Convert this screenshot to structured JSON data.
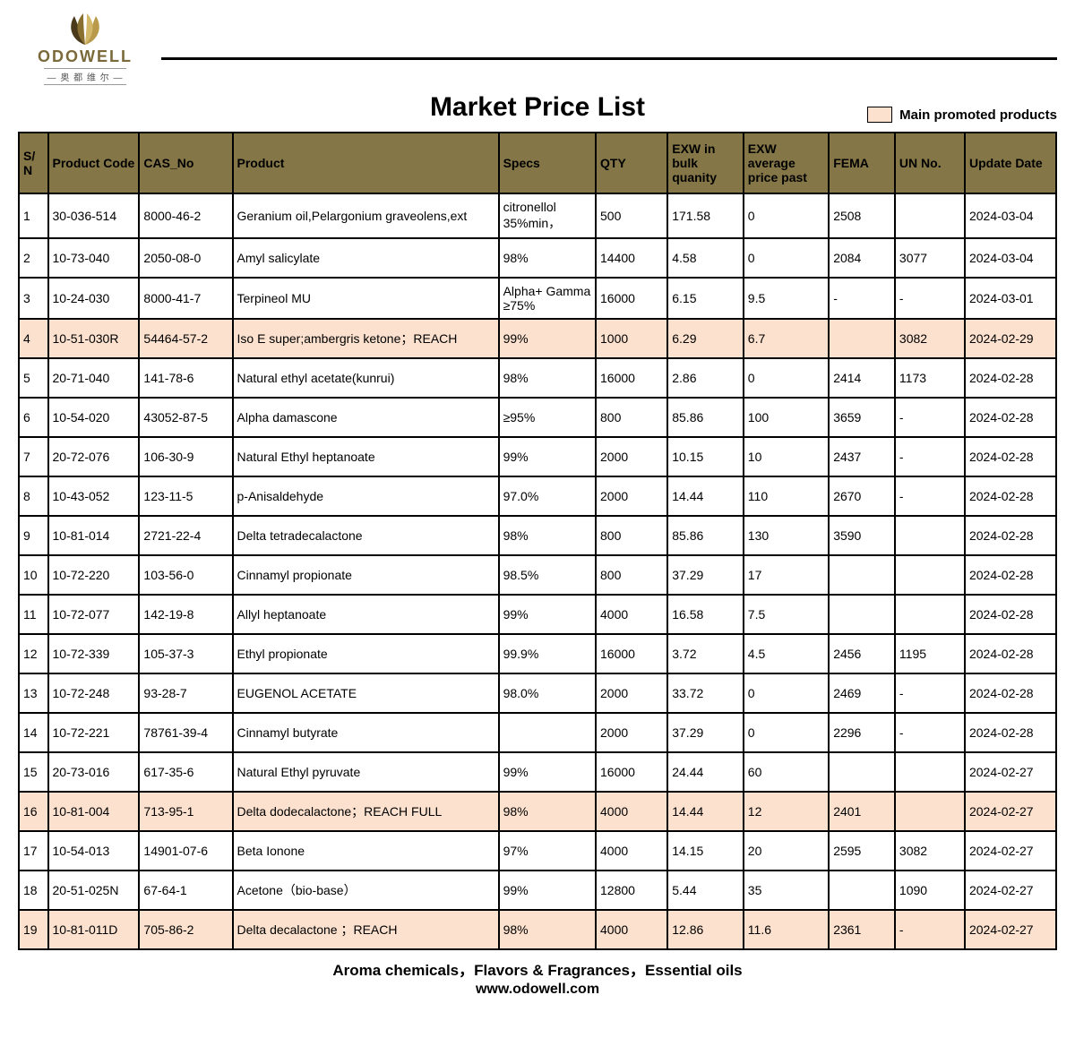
{
  "logo": {
    "brand": "ODOWELL",
    "sub": "— 奥 都 维 尔 —"
  },
  "title": "Market Price List",
  "legend": {
    "swatch_color": "#fbe1ce",
    "label": "Main promoted products"
  },
  "table": {
    "header_bg": "#847646",
    "header_fg": "#000000",
    "promoted_bg": "#fbe1ce",
    "columns": [
      "S/N",
      "Product Code",
      "CAS_No",
      "Product",
      "Specs",
      "QTY",
      "EXW in bulk quanity",
      "EXW average price past",
      "FEMA",
      "UN No.",
      "Update Date"
    ],
    "rows": [
      {
        "sn": "1",
        "code": "30-036-514",
        "cas": "8000-46-2",
        "product": "Geranium oil,Pelargonium graveolens,ext",
        "specs": "citronellol 35%min，",
        "qty": "500",
        "exw_bulk": "171.58",
        "exw_avg": "0",
        "fema": "2508",
        "un": "",
        "date": "2024-03-04",
        "promoted": false
      },
      {
        "sn": "2",
        "code": "10-73-040",
        "cas": "2050-08-0",
        "product": "Amyl salicylate",
        "specs": "98%",
        "qty": "14400",
        "exw_bulk": "4.58",
        "exw_avg": "0",
        "fema": "2084",
        "un": "3077",
        "date": "2024-03-04",
        "promoted": false
      },
      {
        "sn": "3",
        "code": "10-24-030",
        "cas": "8000-41-7",
        "product": "Terpineol MU",
        "specs": "Alpha+ Gamma ≥75%",
        "qty": "16000",
        "exw_bulk": "6.15",
        "exw_avg": "9.5",
        "fema": "-",
        "un": "-",
        "date": "2024-03-01",
        "promoted": false
      },
      {
        "sn": "4",
        "code": "10-51-030R",
        "cas": "54464-57-2",
        "product": "Iso E super;ambergris ketone；REACH",
        "specs": "99%",
        "qty": "1000",
        "exw_bulk": "6.29",
        "exw_avg": "6.7",
        "fema": "",
        "un": "3082",
        "date": "2024-02-29",
        "promoted": true
      },
      {
        "sn": "5",
        "code": "20-71-040",
        "cas": "141-78-6",
        "product": "Natural ethyl acetate(kunrui)",
        "specs": "98%",
        "qty": "16000",
        "exw_bulk": "2.86",
        "exw_avg": "0",
        "fema": "2414",
        "un": "1173",
        "date": "2024-02-28",
        "promoted": false
      },
      {
        "sn": "6",
        "code": "10-54-020",
        "cas": "43052-87-5",
        "product": "Alpha damascone",
        "specs": "≥95%",
        "qty": "800",
        "exw_bulk": "85.86",
        "exw_avg": "100",
        "fema": "3659",
        "un": "-",
        "date": "2024-02-28",
        "promoted": false
      },
      {
        "sn": "7",
        "code": "20-72-076",
        "cas": "106-30-9",
        "product": "Natural Ethyl heptanoate",
        "specs": "99%",
        "qty": "2000",
        "exw_bulk": "10.15",
        "exw_avg": "10",
        "fema": "2437",
        "un": "-",
        "date": "2024-02-28",
        "promoted": false
      },
      {
        "sn": "8",
        "code": "10-43-052",
        "cas": "123-11-5",
        "product": "p-Anisaldehyde",
        "specs": "97.0%",
        "qty": "2000",
        "exw_bulk": "14.44",
        "exw_avg": "110",
        "fema": "2670",
        "un": "-",
        "date": "2024-02-28",
        "promoted": false
      },
      {
        "sn": "9",
        "code": "10-81-014",
        "cas": "2721-22-4",
        "product": "Delta tetradecalactone",
        "specs": "98%",
        "qty": "800",
        "exw_bulk": "85.86",
        "exw_avg": "130",
        "fema": "3590",
        "un": "",
        "date": "2024-02-28",
        "promoted": false
      },
      {
        "sn": "10",
        "code": "10-72-220",
        "cas": "103-56-0",
        "product": "Cinnamyl propionate",
        "specs": "98.5%",
        "qty": "800",
        "exw_bulk": "37.29",
        "exw_avg": "17",
        "fema": "",
        "un": "",
        "date": "2024-02-28",
        "promoted": false
      },
      {
        "sn": "11",
        "code": "10-72-077",
        "cas": "142-19-8",
        "product": "Allyl heptanoate",
        "specs": "99%",
        "qty": "4000",
        "exw_bulk": "16.58",
        "exw_avg": "7.5",
        "fema": "",
        "un": "",
        "date": "2024-02-28",
        "promoted": false
      },
      {
        "sn": "12",
        "code": "10-72-339",
        "cas": "105-37-3",
        "product": "Ethyl propionate",
        "specs": "99.9%",
        "qty": "16000",
        "exw_bulk": "3.72",
        "exw_avg": "4.5",
        "fema": "2456",
        "un": "1195",
        "date": "2024-02-28",
        "promoted": false
      },
      {
        "sn": "13",
        "code": "10-72-248",
        "cas": "93-28-7",
        "product": "EUGENOL ACETATE",
        "specs": "98.0%",
        "qty": "2000",
        "exw_bulk": "33.72",
        "exw_avg": "0",
        "fema": "2469",
        "un": "-",
        "date": "2024-02-28",
        "promoted": false
      },
      {
        "sn": "14",
        "code": "10-72-221",
        "cas": "78761-39-4",
        "product": "Cinnamyl butyrate",
        "specs": "",
        "qty": "2000",
        "exw_bulk": "37.29",
        "exw_avg": "0",
        "fema": "2296",
        "un": "-",
        "date": "2024-02-28",
        "promoted": false
      },
      {
        "sn": "15",
        "code": "20-73-016",
        "cas": "617-35-6",
        "product": "Natural Ethyl pyruvate",
        "specs": "99%",
        "qty": "16000",
        "exw_bulk": "24.44",
        "exw_avg": "60",
        "fema": "",
        "un": "",
        "date": "2024-02-27",
        "promoted": false
      },
      {
        "sn": "16",
        "code": "10-81-004",
        "cas": "713-95-1",
        "product": "Delta dodecalactone；REACH FULL",
        "specs": "98%",
        "qty": "4000",
        "exw_bulk": "14.44",
        "exw_avg": "12",
        "fema": "2401",
        "un": "",
        "date": "2024-02-27",
        "promoted": true
      },
      {
        "sn": "17",
        "code": "10-54-013",
        "cas": "14901-07-6",
        "product": "Beta Ionone",
        "specs": "97%",
        "qty": "4000",
        "exw_bulk": "14.15",
        "exw_avg": "20",
        "fema": "2595",
        "un": "3082",
        "date": "2024-02-27",
        "promoted": false
      },
      {
        "sn": "18",
        "code": "20-51-025N",
        "cas": "67-64-1",
        "product": "Acetone（bio-base）",
        "specs": "99%",
        "qty": "12800",
        "exw_bulk": "5.44",
        "exw_avg": "35",
        "fema": "",
        "un": "1090",
        "date": "2024-02-27",
        "promoted": false
      },
      {
        "sn": "19",
        "code": "10-81-011D",
        "cas": "705-86-2",
        "product": "Delta decalactone ；REACH",
        "specs": "98%",
        "qty": "4000",
        "exw_bulk": "12.86",
        "exw_avg": "11.6",
        "fema": "2361",
        "un": "-",
        "date": "2024-02-27",
        "promoted": true
      }
    ]
  },
  "footer": {
    "line1": "Aroma chemicals，Flavors & Fragrances，Essential oils",
    "line2": "www.odowell.com"
  }
}
